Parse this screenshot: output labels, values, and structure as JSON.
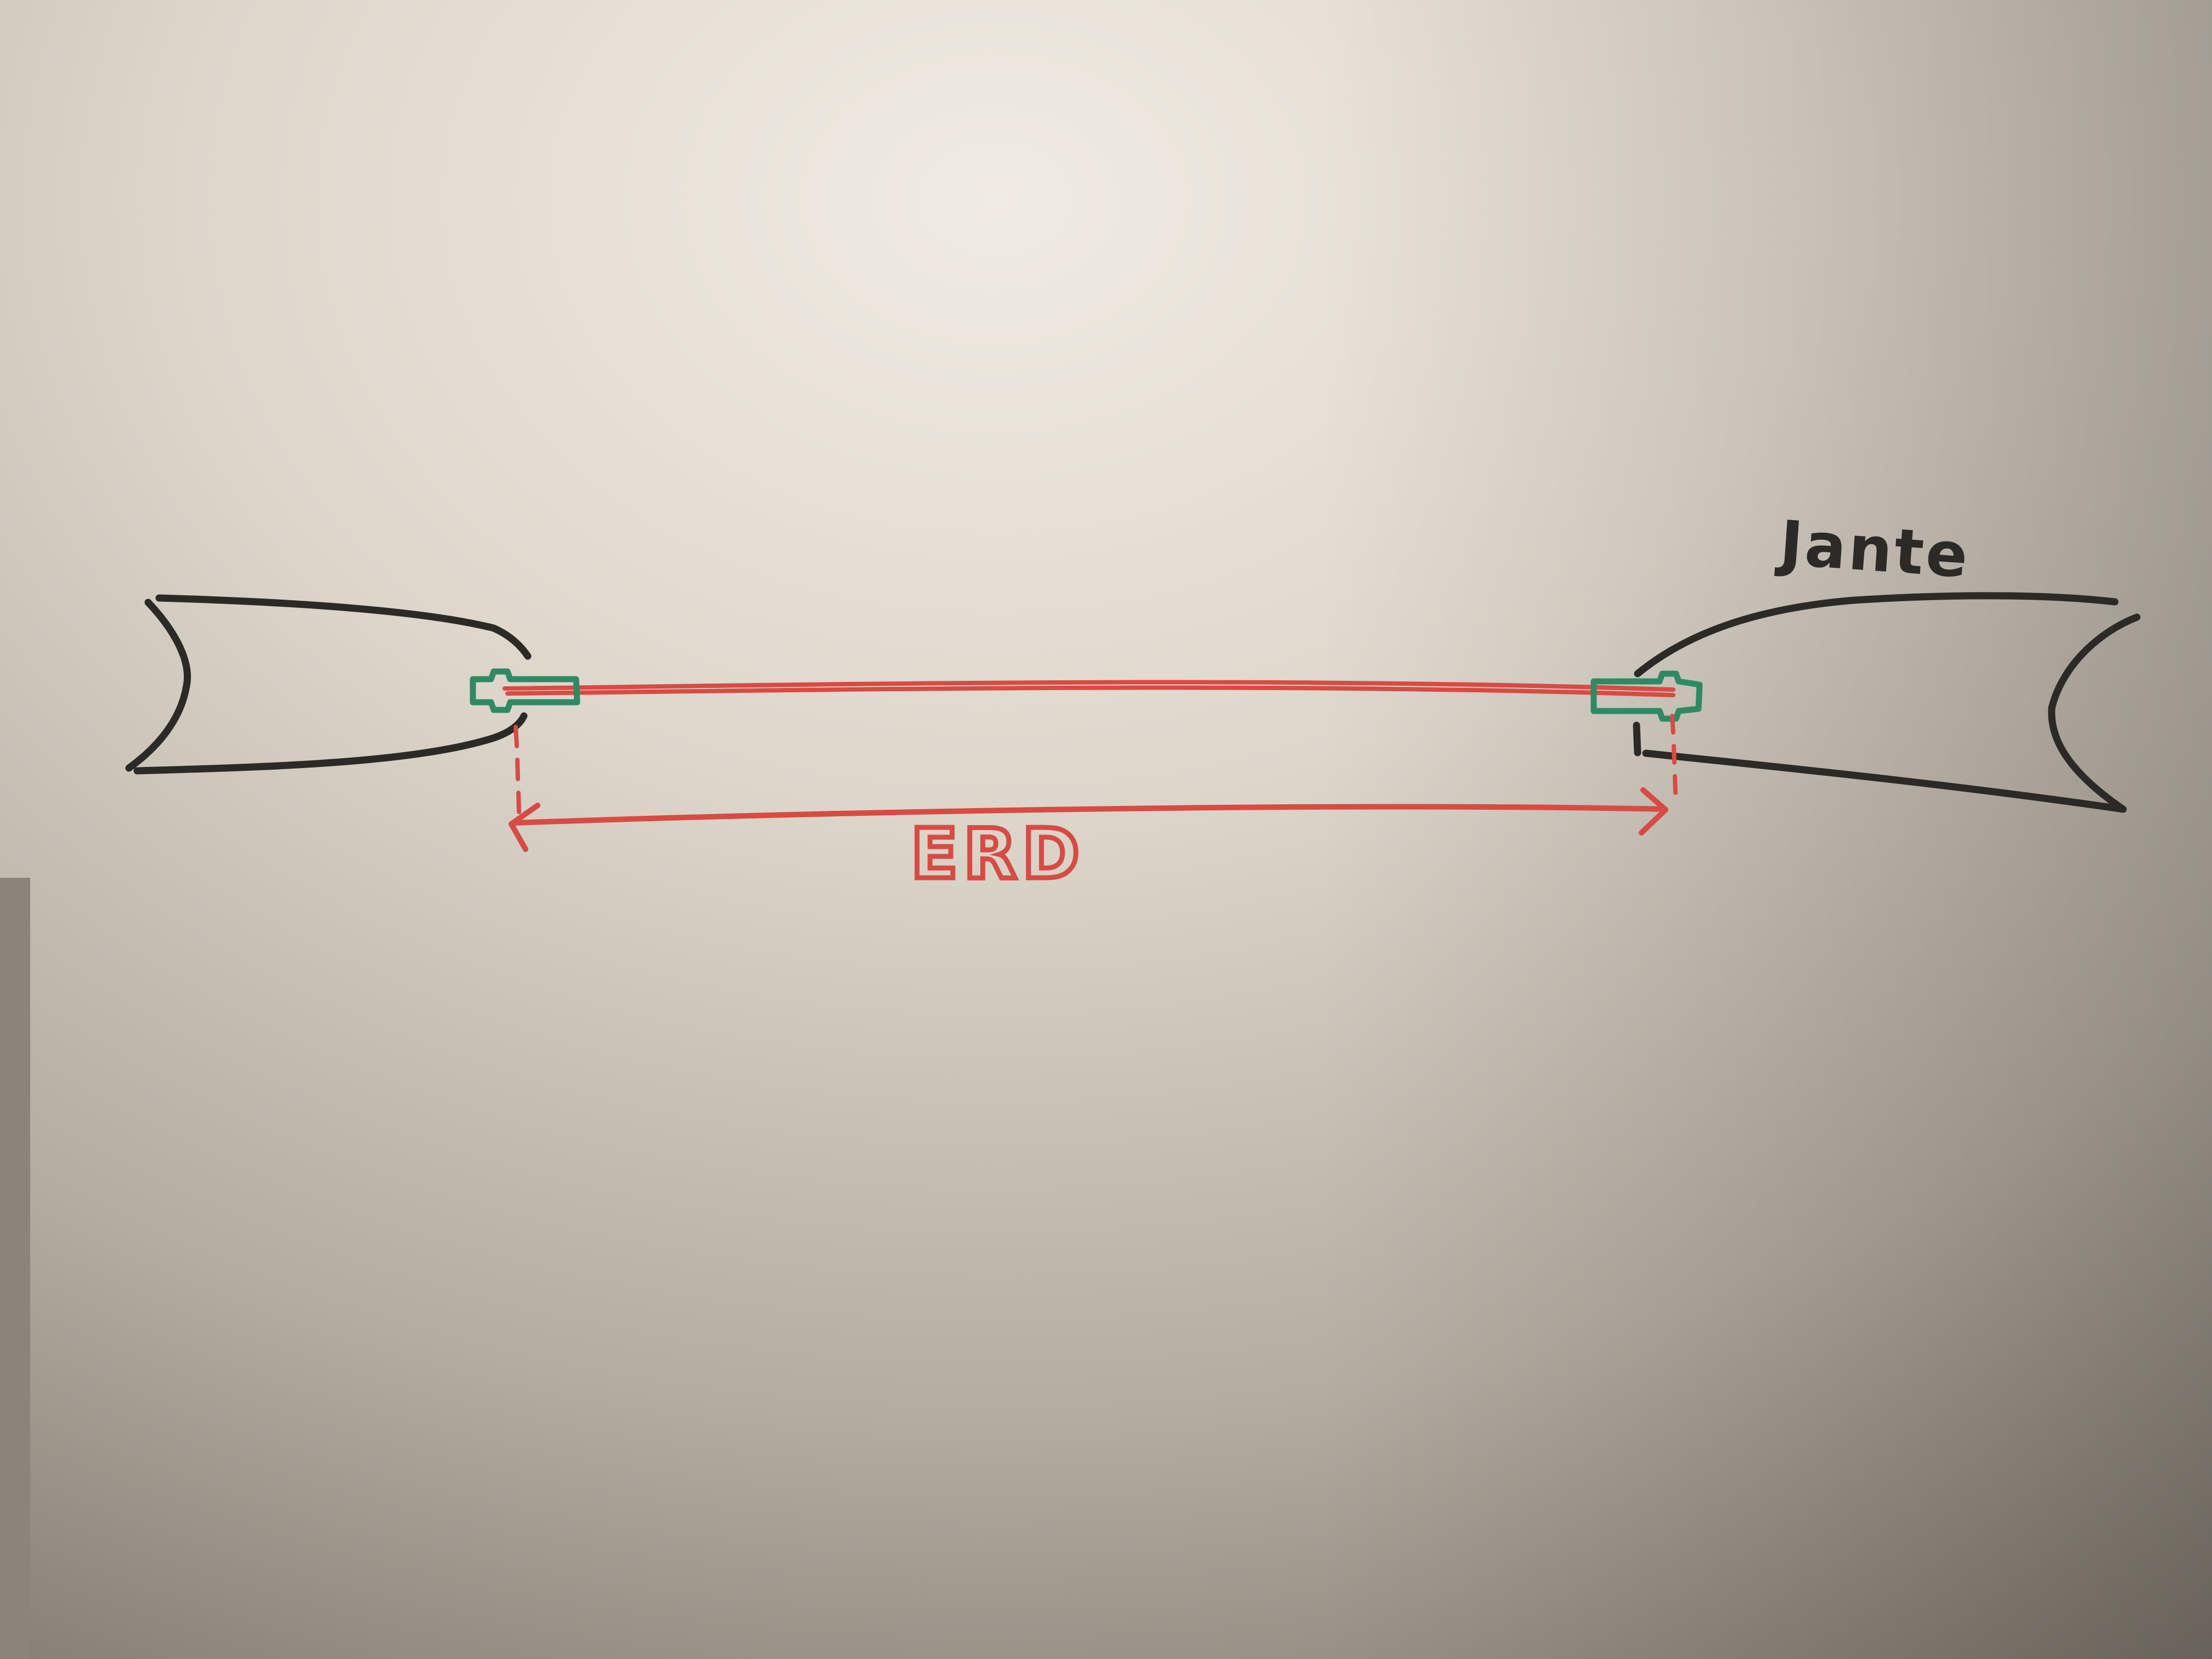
{
  "diagram": {
    "rim_label": "Jante",
    "measurement_label": "ERD",
    "colors": {
      "board_light": "#ece7de",
      "board_dark": "#7c756b",
      "rim_ink": "#2c2a27",
      "spoke_ink": "#d84b43",
      "nipple_ink": "#2f8a64"
    }
  }
}
